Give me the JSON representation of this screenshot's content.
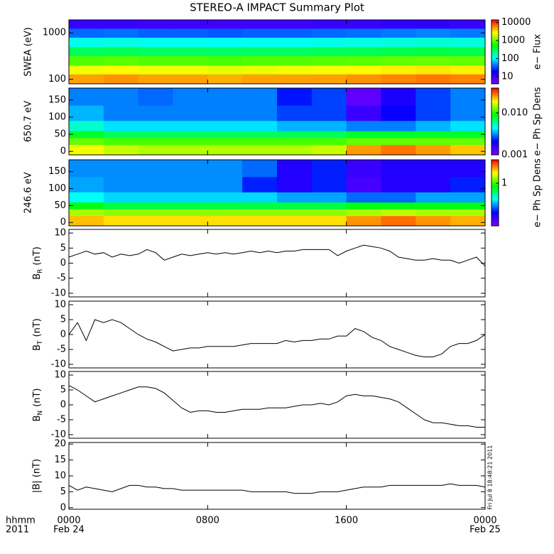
{
  "title": "STEREO-A IMPACT Summary Plot",
  "timestamp": "Fri Jul  8 18:48:21 2011",
  "xaxis": {
    "xlim": [
      0,
      24
    ],
    "xticks": [
      {
        "value": 0,
        "label": "0000"
      },
      {
        "value": 8,
        "label": "0800"
      },
      {
        "value": 16,
        "label": "1600"
      },
      {
        "value": 24,
        "label": "0000"
      }
    ],
    "date_labels": [
      {
        "value": 0,
        "label": "Feb 24"
      },
      {
        "value": 24,
        "label": "Feb 25"
      }
    ],
    "corner_labels": [
      "hhmm",
      "2011"
    ]
  },
  "chart_data": [
    {
      "type": "heatmap",
      "ylabel": "SWEA (eV)",
      "ylog": true,
      "ylim": [
        80,
        1900
      ],
      "yticks": [
        100,
        1000
      ],
      "x_edges": [
        0,
        2,
        4,
        6,
        8,
        10,
        12,
        14,
        16,
        18,
        20,
        22,
        24
      ],
      "y_edges": [
        80,
        130,
        200,
        320,
        500,
        800,
        1250,
        1900
      ],
      "z": [
        [
          5000,
          5500,
          5000,
          5000,
          4500,
          5000,
          5000,
          5000,
          5500,
          6000,
          6500,
          6000
        ],
        [
          2500,
          2800,
          2500,
          2500,
          2300,
          2400,
          2500,
          2600,
          2800,
          3000,
          3200,
          3000
        ],
        [
          900,
          950,
          900,
          900,
          850,
          900,
          900,
          920,
          950,
          1000,
          1050,
          1000
        ],
        [
          300,
          310,
          290,
          290,
          280,
          290,
          290,
          300,
          310,
          330,
          350,
          330
        ],
        [
          120,
          125,
          115,
          115,
          110,
          115,
          115,
          120,
          125,
          130,
          140,
          130
        ],
        [
          40,
          42,
          38,
          38,
          36,
          38,
          38,
          40,
          42,
          45,
          48,
          45
        ],
        [
          10,
          10,
          9,
          9,
          9,
          9,
          9,
          10,
          10,
          11,
          11,
          10
        ]
      ],
      "colormap": [
        "#7f00ff",
        "#0000ff",
        "#00ffff",
        "#00ff00",
        "#ffff00",
        "#ff0000"
      ],
      "colorbar": {
        "label": "e− Flux",
        "log": true,
        "lim": [
          4,
          14000
        ],
        "ticks": [
          10,
          100,
          1000,
          10000
        ]
      }
    },
    {
      "type": "heatmap",
      "ylabel": "650.7 eV",
      "ylog": false,
      "ylim": [
        -10,
        185
      ],
      "yticks": [
        0,
        50,
        100,
        150
      ],
      "x_edges": [
        0,
        2,
        4,
        6,
        8,
        10,
        12,
        14,
        16,
        18,
        20,
        22,
        24
      ],
      "y_edges": [
        -10,
        20,
        40,
        60,
        90,
        135,
        185
      ],
      "z": [
        [
          0.018,
          0.016,
          0.015,
          0.015,
          0.015,
          0.015,
          0.015,
          0.016,
          0.025,
          0.028,
          0.025,
          0.022
        ],
        [
          0.012,
          0.011,
          0.011,
          0.011,
          0.011,
          0.011,
          0.011,
          0.011,
          0.012,
          0.012,
          0.012,
          0.012
        ],
        [
          0.008,
          0.007,
          0.007,
          0.007,
          0.007,
          0.007,
          0.007,
          0.007,
          0.008,
          0.008,
          0.008,
          0.008
        ],
        [
          0.005,
          0.004,
          0.004,
          0.004,
          0.004,
          0.004,
          0.0035,
          0.0035,
          0.003,
          0.003,
          0.0035,
          0.004
        ],
        [
          0.0035,
          0.003,
          0.003,
          0.003,
          0.003,
          0.003,
          0.0025,
          0.0025,
          0.0015,
          0.002,
          0.0025,
          0.003
        ],
        [
          0.003,
          0.003,
          0.0028,
          0.003,
          0.003,
          0.003,
          0.0022,
          0.0025,
          0.0012,
          0.0018,
          0.0025,
          0.003
        ]
      ],
      "colormap": [
        "#7f00ff",
        "#0000ff",
        "#00ffff",
        "#00ff00",
        "#ffff00",
        "#ff0000"
      ],
      "colorbar": {
        "label": "e− Ph Sp Dens",
        "log": true,
        "lim": [
          0.001,
          0.039
        ],
        "ticks": [
          {
            "value": 0.01,
            "label": "0.010"
          },
          {
            "value": 0.001,
            "label": "0.001"
          }
        ]
      }
    },
    {
      "type": "heatmap",
      "ylabel": "246.6 eV",
      "ylog": false,
      "ylim": [
        -10,
        185
      ],
      "yticks": [
        0,
        50,
        100,
        150
      ],
      "x_edges": [
        0,
        2,
        4,
        6,
        8,
        10,
        12,
        14,
        16,
        18,
        20,
        22,
        24
      ],
      "y_edges": [
        -10,
        20,
        40,
        60,
        90,
        135,
        185
      ],
      "z": [
        [
          2.2,
          2.0,
          2.0,
          2.0,
          2.0,
          2.0,
          2.0,
          2.0,
          2.5,
          2.8,
          2.5,
          2.3
        ],
        [
          1.4,
          1.3,
          1.3,
          1.3,
          1.3,
          1.3,
          1.3,
          1.3,
          1.4,
          1.5,
          1.4,
          1.4
        ],
        [
          0.8,
          0.7,
          0.7,
          0.7,
          0.7,
          0.7,
          0.7,
          0.7,
          0.8,
          0.8,
          0.8,
          0.8
        ],
        [
          0.4,
          0.35,
          0.35,
          0.35,
          0.35,
          0.35,
          0.3,
          0.3,
          0.25,
          0.25,
          0.3,
          0.3
        ],
        [
          0.3,
          0.28,
          0.28,
          0.28,
          0.28,
          0.2,
          0.15,
          0.2,
          0.12,
          0.15,
          0.15,
          0.2
        ],
        [
          0.28,
          0.28,
          0.28,
          0.28,
          0.28,
          0.25,
          0.15,
          0.2,
          0.13,
          0.15,
          0.15,
          0.15
        ]
      ],
      "colormap": [
        "#7f00ff",
        "#0000ff",
        "#00ffff",
        "#00ff00",
        "#ffff00",
        "#ff0000"
      ],
      "colorbar": {
        "label": "e− Ph Sp Dens",
        "log": true,
        "lim": [
          0.085,
          3.9
        ],
        "ticks": [
          1
        ]
      }
    },
    {
      "type": "line",
      "ylabel": {
        "text": "B",
        "sub": "R",
        "unit": "(nT)"
      },
      "ylim": [
        -11.2,
        11.2
      ],
      "yticks": [
        -10,
        -5,
        0,
        5,
        10
      ],
      "color": "#000000",
      "x": [
        0,
        0.5,
        1,
        1.5,
        2,
        2.5,
        3,
        3.5,
        4,
        4.5,
        5,
        5.5,
        6,
        6.5,
        7,
        7.5,
        8,
        8.5,
        9,
        9.5,
        10,
        10.5,
        11,
        11.5,
        12,
        12.5,
        13,
        13.5,
        14,
        14.5,
        15,
        15.5,
        16,
        16.5,
        17,
        17.5,
        18,
        18.5,
        19,
        19.5,
        20,
        20.5,
        21,
        21.5,
        22,
        22.5,
        23,
        23.5,
        24
      ],
      "values": [
        2,
        3,
        4,
        3,
        3.5,
        2,
        3,
        2.5,
        3,
        4.5,
        3.5,
        1,
        2,
        3,
        2.5,
        3,
        3.5,
        3,
        3.5,
        3,
        3.5,
        4,
        3.5,
        4,
        3.5,
        4,
        4,
        4.5,
        4.5,
        4.5,
        4.5,
        2.5,
        4,
        5,
        6,
        5.5,
        5,
        4,
        2,
        1.5,
        1,
        1,
        1.5,
        1,
        1,
        0,
        1,
        2,
        -1
      ]
    },
    {
      "type": "line",
      "ylabel": {
        "text": "B",
        "sub": "T",
        "unit": "(nT)"
      },
      "ylim": [
        -11.2,
        11.2
      ],
      "yticks": [
        -10,
        -5,
        0,
        5,
        10
      ],
      "color": "#000000",
      "x": [
        0,
        0.5,
        1,
        1.5,
        2,
        2.5,
        3,
        3.5,
        4,
        4.5,
        5,
        5.5,
        6,
        6.5,
        7,
        7.5,
        8,
        8.5,
        9,
        9.5,
        10,
        10.5,
        11,
        11.5,
        12,
        12.5,
        13,
        13.5,
        14,
        14.5,
        15,
        15.5,
        16,
        16.5,
        17,
        17.5,
        18,
        18.5,
        19,
        19.5,
        20,
        20.5,
        21,
        21.5,
        22,
        22.5,
        23,
        23.5,
        24
      ],
      "values": [
        0,
        4,
        -2,
        5,
        4,
        5,
        4,
        2,
        0,
        -1.5,
        -2.5,
        -4,
        -5.5,
        -5,
        -4.5,
        -4.5,
        -4,
        -4,
        -4,
        -4,
        -3.5,
        -3,
        -3,
        -3,
        -3,
        -2,
        -2.5,
        -2,
        -2,
        -1.5,
        -1.5,
        -0.5,
        -0.5,
        2,
        1,
        -1,
        -2,
        -4,
        -5,
        -6,
        -7,
        -7.5,
        -7.5,
        -6.5,
        -4,
        -3,
        -3,
        -2,
        0
      ]
    },
    {
      "type": "line",
      "ylabel": {
        "text": "B",
        "sub": "N",
        "unit": "(nT)"
      },
      "ylim": [
        -11.2,
        11.2
      ],
      "yticks": [
        -10,
        -5,
        0,
        5,
        10
      ],
      "color": "#000000",
      "x": [
        0,
        0.5,
        1,
        1.5,
        2,
        2.5,
        3,
        3.5,
        4,
        4.5,
        5,
        5.5,
        6,
        6.5,
        7,
        7.5,
        8,
        8.5,
        9,
        9.5,
        10,
        10.5,
        11,
        11.5,
        12,
        12.5,
        13,
        13.5,
        14,
        14.5,
        15,
        15.5,
        16,
        16.5,
        17,
        17.5,
        18,
        18.5,
        19,
        19.5,
        20,
        20.5,
        21,
        21.5,
        22,
        22.5,
        23,
        23.5,
        24
      ],
      "values": [
        6.5,
        5,
        3,
        1,
        2,
        3,
        4,
        5,
        6,
        6,
        5.5,
        4,
        1.5,
        -1,
        -2.5,
        -2,
        -2,
        -2.5,
        -2.5,
        -2,
        -1.5,
        -1.5,
        -1.5,
        -1,
        -1,
        -1,
        -0.5,
        0,
        0,
        0.5,
        0,
        1,
        3,
        3.5,
        3,
        3,
        2.5,
        2,
        1,
        -1,
        -3,
        -5,
        -6,
        -6,
        -6.5,
        -7,
        -7,
        -7.5,
        -7.5
      ]
    },
    {
      "type": "line",
      "ylabel": "|B| (nT)",
      "ylim": [
        -0.5,
        20.5
      ],
      "yticks": [
        0,
        5,
        10,
        15,
        20
      ],
      "color": "#000000",
      "x": [
        0,
        0.5,
        1,
        1.5,
        2,
        2.5,
        3,
        3.5,
        4,
        4.5,
        5,
        5.5,
        6,
        6.5,
        7,
        7.5,
        8,
        8.5,
        9,
        9.5,
        10,
        10.5,
        11,
        11.5,
        12,
        12.5,
        13,
        13.5,
        14,
        14.5,
        15,
        15.5,
        16,
        16.5,
        17,
        17.5,
        18,
        18.5,
        19,
        19.5,
        20,
        20.5,
        21,
        21.5,
        22,
        22.5,
        23,
        23.5,
        24
      ],
      "values": [
        7,
        5.5,
        6.5,
        6,
        5.5,
        5,
        6,
        7,
        7,
        6.5,
        6.5,
        6,
        6,
        5.5,
        5.5,
        5.5,
        5.5,
        5.5,
        5.5,
        5.5,
        5.5,
        5,
        5,
        5,
        5,
        5,
        4.5,
        4.5,
        4.5,
        5,
        5,
        5,
        5.5,
        6,
        6.5,
        6.5,
        6.5,
        7,
        7,
        7,
        7,
        7,
        7,
        7,
        7.5,
        7,
        7,
        7,
        6.5
      ]
    }
  ]
}
